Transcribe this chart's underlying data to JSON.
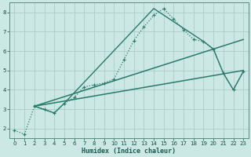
{
  "xlabel": "Humidex (Indice chaleur)",
  "ylabel": "",
  "xlim": [
    -0.5,
    23.5
  ],
  "ylim": [
    1.5,
    8.5
  ],
  "xticks": [
    0,
    1,
    2,
    3,
    4,
    5,
    6,
    7,
    8,
    9,
    10,
    11,
    12,
    13,
    14,
    15,
    16,
    17,
    18,
    19,
    20,
    21,
    22,
    23
  ],
  "yticks": [
    2,
    3,
    4,
    5,
    6,
    7,
    8
  ],
  "bg_color": "#cce8e4",
  "line_color": "#2a7a6a",
  "grid_color": "#aaccc8",
  "line_main": {
    "x": [
      0,
      1,
      2,
      3,
      4,
      5,
      6,
      7,
      8,
      9,
      10,
      11,
      12,
      13,
      14,
      15,
      16,
      17,
      18,
      19,
      20,
      21,
      22,
      23
    ],
    "y": [
      1.9,
      1.7,
      3.15,
      3.0,
      2.8,
      3.3,
      3.6,
      4.15,
      4.25,
      4.35,
      4.55,
      5.55,
      6.55,
      7.25,
      7.85,
      8.2,
      7.65,
      7.1,
      6.6,
      6.5,
      6.1,
      4.85,
      4.0,
      4.95
    ]
  },
  "line_straight1": {
    "x": [
      2,
      23
    ],
    "y": [
      3.15,
      6.6
    ]
  },
  "line_straight2": {
    "x": [
      2,
      23
    ],
    "y": [
      3.15,
      5.0
    ]
  },
  "line_connect": {
    "x": [
      2,
      4,
      5,
      14,
      19,
      20,
      21,
      22,
      23
    ],
    "y": [
      3.15,
      2.8,
      3.3,
      8.2,
      6.5,
      6.1,
      4.85,
      4.0,
      4.95
    ]
  }
}
